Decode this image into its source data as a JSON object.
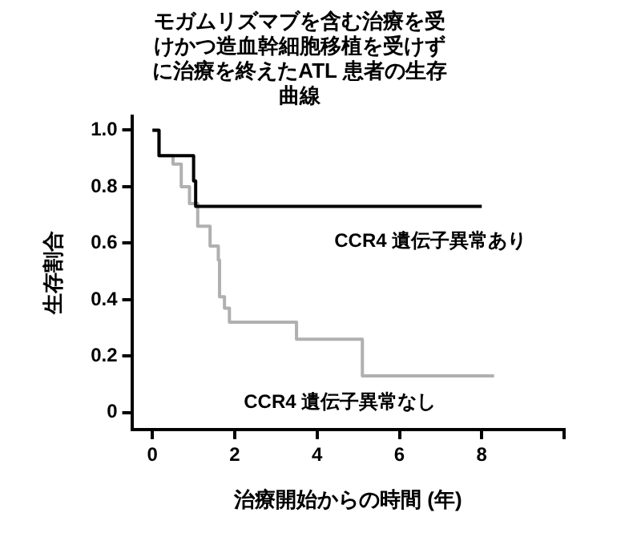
{
  "chart_data": {
    "type": "step",
    "title": "モガムリズマブを含む治療を受けかつ造血幹細胞移植を受けずに治療を終えたATL 患者の生存曲線",
    "xlabel": "治療開始からの時間 (年)",
    "ylabel": "生存割合",
    "series": [
      {
        "name": "CCR4 遺伝子異常あり",
        "color": "#000000",
        "x": [
          0,
          0.16,
          1.0,
          1.05,
          8.0
        ],
        "values": [
          1,
          0.91,
          0.82,
          0.73,
          0.73
        ]
      },
      {
        "name": "CCR4 遺伝子異常なし",
        "color": "#b0b0b0",
        "x": [
          0,
          0.16,
          0.5,
          0.7,
          0.9,
          1.1,
          1.4,
          1.6,
          1.63,
          1.75,
          1.87,
          3.5,
          5.1,
          8.3
        ],
        "values": [
          1,
          0.91,
          0.88,
          0.8,
          0.74,
          0.66,
          0.59,
          0.54,
          0.41,
          0.37,
          0.32,
          0.26,
          0.13,
          0.13
        ]
      }
    ],
    "xlim": [
      -0.5,
      10
    ],
    "xticks": [
      0,
      2,
      4,
      6,
      8,
      {
        "value": 10,
        "label": null
      }
    ],
    "ylim": [
      -0.06,
      1.05
    ],
    "yticks": [
      0,
      {
        "value": 0.2,
        "label": "0.2"
      },
      {
        "value": 0.4,
        "label": "0.4"
      },
      {
        "value": 0.6,
        "label": "0.6"
      },
      {
        "value": 0.8,
        "label": "0.8"
      },
      {
        "value": 1,
        "label": "1.0"
      }
    ],
    "grid": false,
    "legend": false,
    "marker": "none"
  }
}
